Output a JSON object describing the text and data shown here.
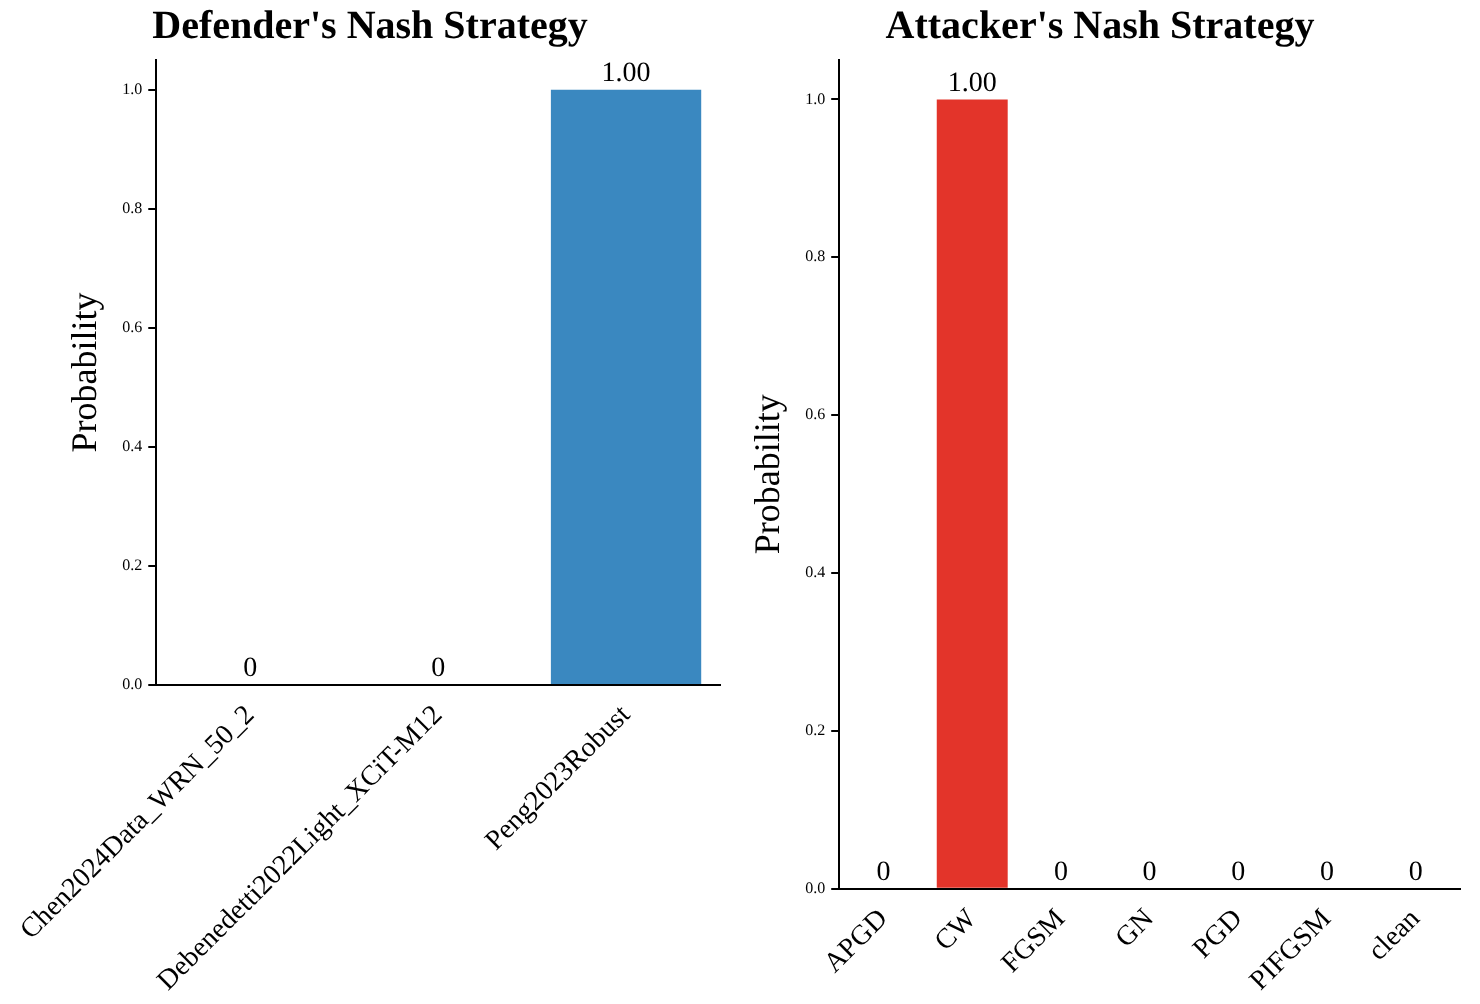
{
  "chart_data": [
    {
      "type": "bar",
      "title": "Defender's Nash Strategy",
      "ylabel": "Probability",
      "categories": [
        "Chen2024Data_WRN_50_2",
        "Debenedetti2022Light_XCiT-M12",
        "Peng2023Robust"
      ],
      "values": [
        0,
        0,
        1.0
      ],
      "value_labels": [
        "0",
        "0",
        "1.00"
      ],
      "color": "#3a88c0",
      "ylim": [
        0,
        1.05
      ],
      "yticks": [
        {
          "value": 0,
          "label": "0.0"
        },
        {
          "value": 0.2,
          "label": "0.2"
        },
        {
          "value": 0.4,
          "label": "0.4"
        },
        {
          "value": 0.6,
          "label": "0.6"
        },
        {
          "value": 0.8,
          "label": "0.8"
        },
        {
          "value": 1,
          "label": "1.0"
        }
      ],
      "grid": false,
      "legend": false
    },
    {
      "type": "bar",
      "title": "Attacker's Nash Strategy",
      "ylabel": "Probability",
      "categories": [
        "APGD",
        "CW",
        "FGSM",
        "GN",
        "PGD",
        "PIFGSM",
        "clean"
      ],
      "values": [
        0,
        1.0,
        0,
        0,
        0,
        0,
        0
      ],
      "value_labels": [
        "0",
        "1.00",
        "0",
        "0",
        "0",
        "0",
        "0"
      ],
      "color": "#e3342a",
      "ylim": [
        0,
        1.05
      ],
      "yticks": [
        {
          "value": 0,
          "label": "0.0"
        },
        {
          "value": 0.2,
          "label": "0.2"
        },
        {
          "value": 0.4,
          "label": "0.4"
        },
        {
          "value": 0.6,
          "label": "0.6"
        },
        {
          "value": 0.8,
          "label": "0.8"
        },
        {
          "value": 1,
          "label": "1.0"
        }
      ],
      "grid": false,
      "legend": false
    }
  ]
}
